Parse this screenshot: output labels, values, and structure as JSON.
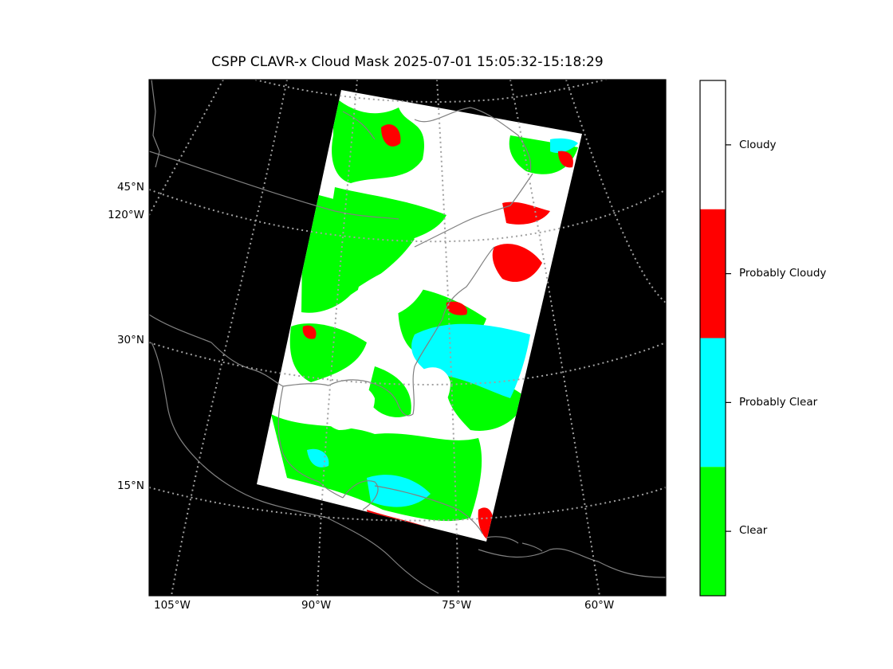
{
  "title": "CSPP CLAVR-x Cloud Mask 2025-07-01 15:05:32-15:18:29",
  "map": {
    "projection": "lambert-conformal",
    "background": "#000000",
    "coastline_color": "#808080",
    "gridline_color": "#a0a0a0",
    "gridline_style": "dotted",
    "lat_labels": [
      {
        "text": "45°N",
        "value": 45
      },
      {
        "text": "30°N",
        "value": 30
      },
      {
        "text": "15°N",
        "value": 15
      }
    ],
    "lon_labels_left": [
      {
        "text": "120°W",
        "value": -120
      }
    ],
    "lon_labels_bottom": [
      {
        "text": "105°W",
        "value": -105
      },
      {
        "text": "90°W",
        "value": -90
      },
      {
        "text": "75°W",
        "value": -75
      },
      {
        "text": "60°W",
        "value": -60
      }
    ]
  },
  "colorbar": {
    "categories": [
      {
        "label": "Cloudy",
        "color": "#ffffff"
      },
      {
        "label": "Probably Cloudy",
        "color": "#ff0000"
      },
      {
        "label": "Probably Clear",
        "color": "#00ffff"
      },
      {
        "label": "Clear",
        "color": "#00ff00"
      }
    ]
  }
}
